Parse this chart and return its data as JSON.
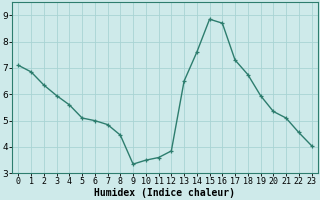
{
  "x": [
    0,
    1,
    2,
    3,
    4,
    5,
    6,
    7,
    8,
    9,
    10,
    11,
    12,
    13,
    14,
    15,
    16,
    17,
    18,
    19,
    20,
    21,
    22,
    23
  ],
  "y": [
    7.1,
    6.85,
    6.35,
    5.95,
    5.6,
    5.1,
    5.0,
    4.85,
    4.45,
    3.35,
    3.5,
    3.6,
    3.85,
    6.5,
    7.6,
    8.85,
    8.7,
    7.3,
    6.75,
    5.95,
    5.35,
    5.1,
    4.55,
    4.05
  ],
  "line_color": "#2d7d6e",
  "marker": "+",
  "bg_color": "#ceeaea",
  "grid_color": "#a8d4d4",
  "xlabel": "Humidex (Indice chaleur)",
  "ylim": [
    3.0,
    9.5
  ],
  "xlim": [
    -0.5,
    23.5
  ],
  "yticks": [
    3,
    4,
    5,
    6,
    7,
    8,
    9
  ],
  "xticks": [
    0,
    1,
    2,
    3,
    4,
    5,
    6,
    7,
    8,
    9,
    10,
    11,
    12,
    13,
    14,
    15,
    16,
    17,
    18,
    19,
    20,
    21,
    22,
    23
  ],
  "xtick_labels": [
    "0",
    "1",
    "2",
    "3",
    "4",
    "5",
    "6",
    "7",
    "8",
    "9",
    "10",
    "11",
    "12",
    "13",
    "14",
    "15",
    "16",
    "17",
    "18",
    "19",
    "20",
    "21",
    "22",
    "23"
  ],
  "linewidth": 1.0,
  "markersize": 3.5,
  "xlabel_fontsize": 7,
  "tick_fontsize": 6,
  "ytick_fontsize": 6.5
}
